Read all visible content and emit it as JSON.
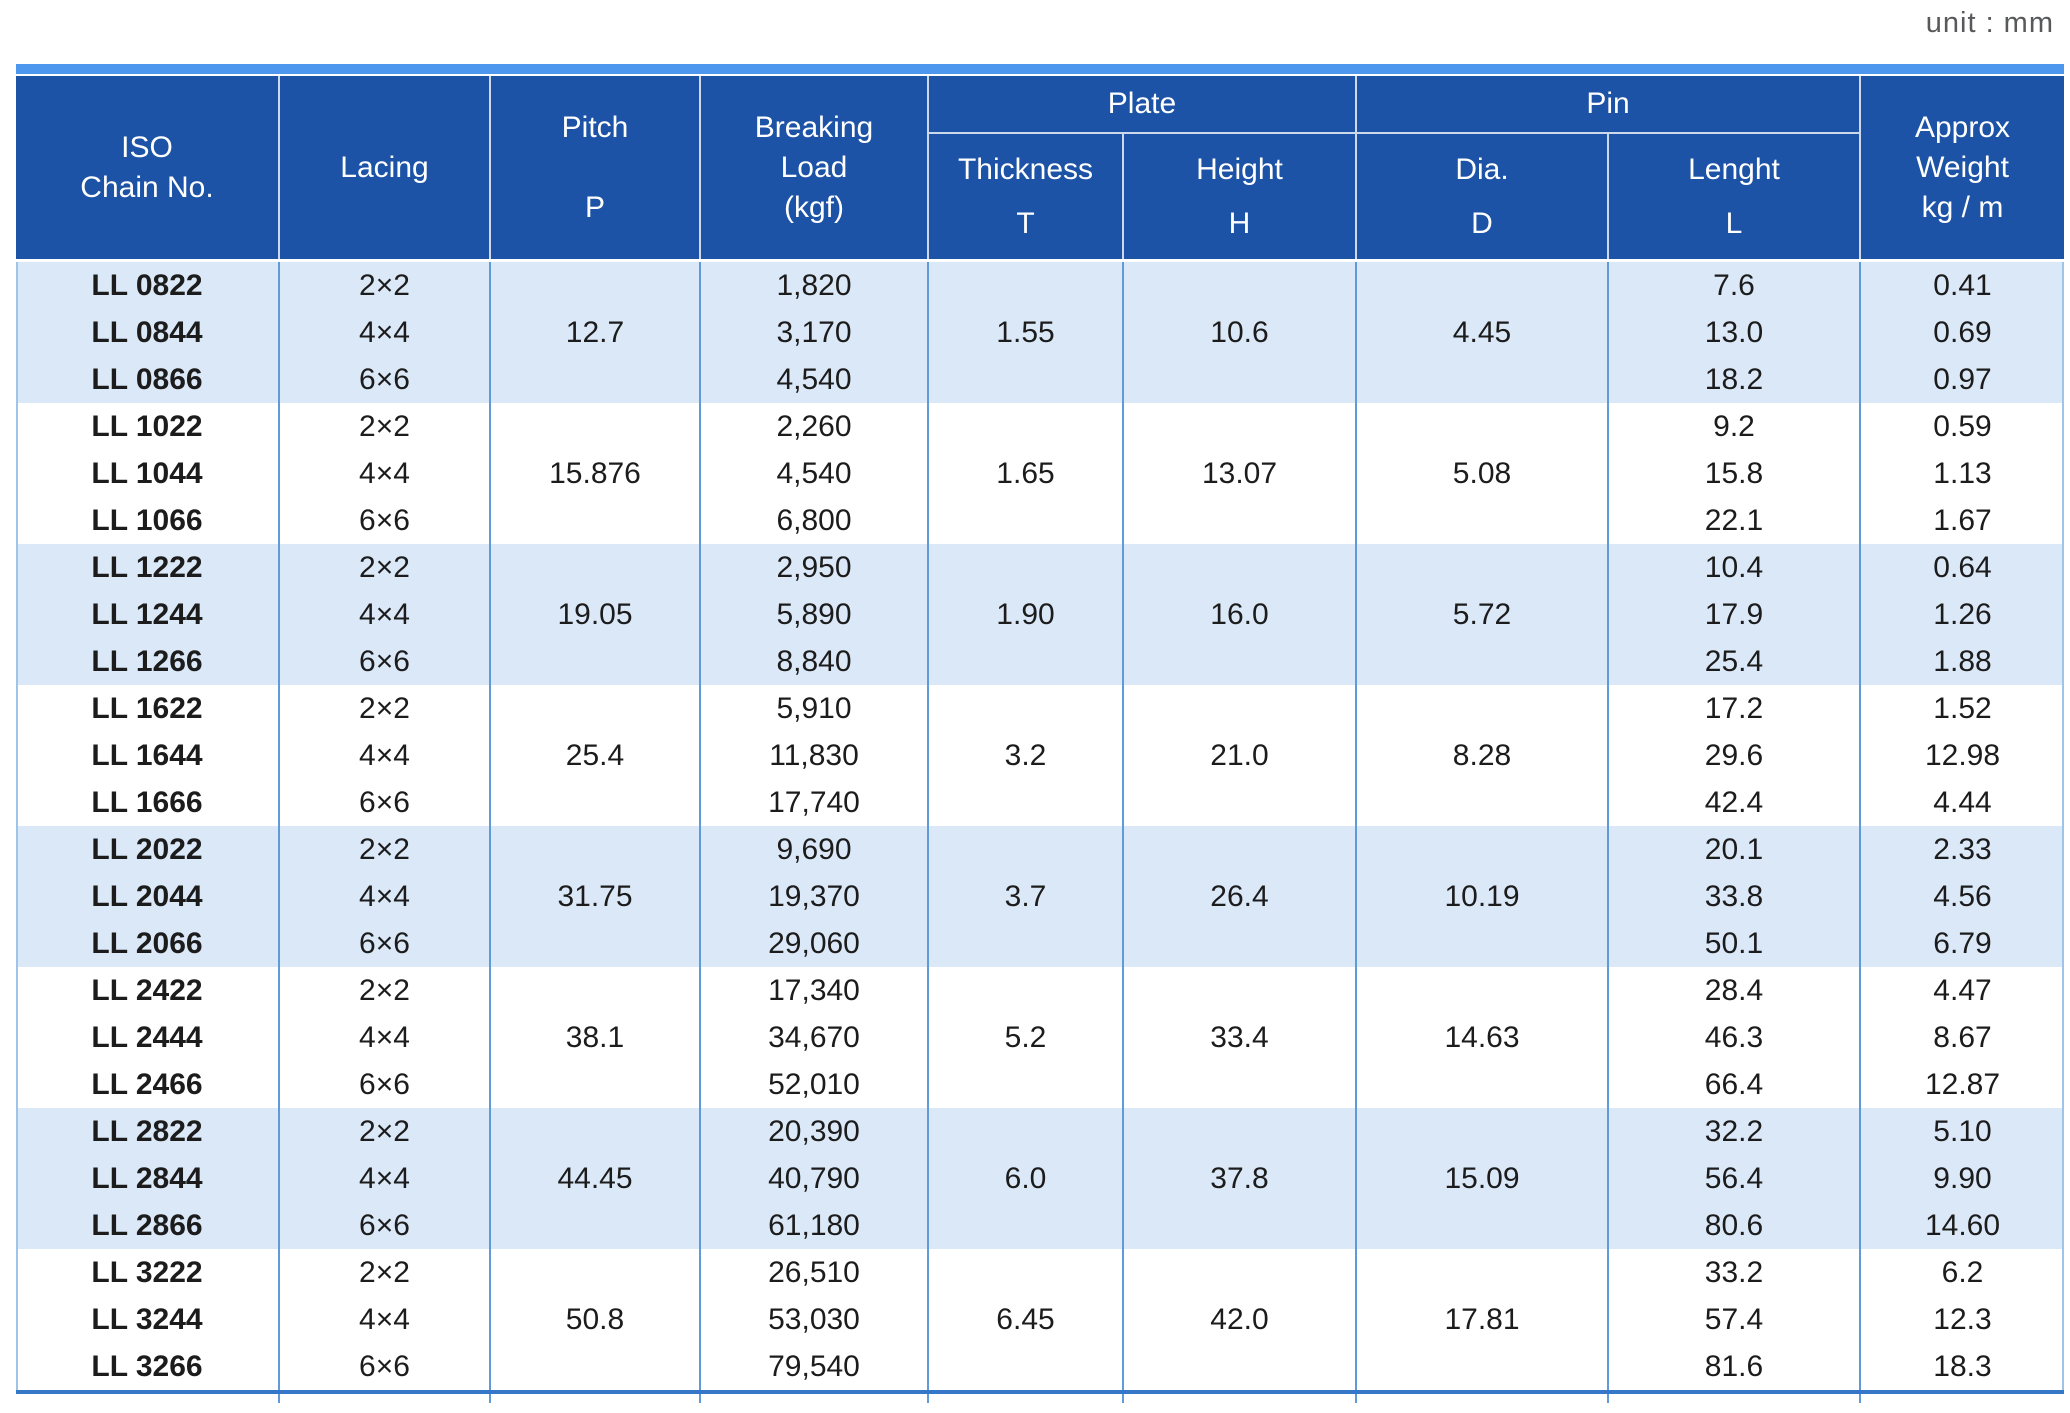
{
  "unit_label": "unit : mm",
  "header": {
    "iso_lines": [
      "ISO",
      "Chain No."
    ],
    "lacing": "Lacing",
    "pitch_lines": [
      "Pitch",
      "P"
    ],
    "load_lines": [
      "Breaking",
      "Load",
      "(kgf)"
    ],
    "plate": "Plate",
    "thickness_lines": [
      "Thickness",
      "T"
    ],
    "height_lines": [
      "Height",
      "H"
    ],
    "pin": "Pin",
    "dia_lines": [
      "Dia.",
      "D"
    ],
    "length_lines": [
      "Lenght",
      "L"
    ],
    "weight_lines": [
      "Approx",
      "Weight",
      "kg / m"
    ]
  },
  "groups": [
    {
      "shade": "light",
      "pitch": "12.7",
      "thickness": "1.55",
      "height": "10.6",
      "dia": "4.45",
      "rows": [
        {
          "chain_no": "LL 0822",
          "lacing": "2×2",
          "breaking_load": "1,820",
          "length": "7.6",
          "weight": "0.41"
        },
        {
          "chain_no": "LL 0844",
          "lacing": "4×4",
          "breaking_load": "3,170",
          "length": "13.0",
          "weight": "0.69"
        },
        {
          "chain_no": "LL 0866",
          "lacing": "6×6",
          "breaking_load": "4,540",
          "length": "18.2",
          "weight": "0.97"
        }
      ]
    },
    {
      "shade": "white",
      "pitch": "15.876",
      "thickness": "1.65",
      "height": "13.07",
      "dia": "5.08",
      "rows": [
        {
          "chain_no": "LL 1022",
          "lacing": "2×2",
          "breaking_load": "2,260",
          "length": "9.2",
          "weight": "0.59"
        },
        {
          "chain_no": "LL 1044",
          "lacing": "4×4",
          "breaking_load": "4,540",
          "length": "15.8",
          "weight": "1.13"
        },
        {
          "chain_no": "LL 1066",
          "lacing": "6×6",
          "breaking_load": "6,800",
          "length": "22.1",
          "weight": "1.67"
        }
      ]
    },
    {
      "shade": "light",
      "pitch": "19.05",
      "thickness": "1.90",
      "height": "16.0",
      "dia": "5.72",
      "rows": [
        {
          "chain_no": "LL 1222",
          "lacing": "2×2",
          "breaking_load": "2,950",
          "length": "10.4",
          "weight": "0.64"
        },
        {
          "chain_no": "LL 1244",
          "lacing": "4×4",
          "breaking_load": "5,890",
          "length": "17.9",
          "weight": "1.26"
        },
        {
          "chain_no": "LL 1266",
          "lacing": "6×6",
          "breaking_load": "8,840",
          "length": "25.4",
          "weight": "1.88"
        }
      ]
    },
    {
      "shade": "white",
      "pitch": "25.4",
      "thickness": "3.2",
      "height": "21.0",
      "dia": "8.28",
      "rows": [
        {
          "chain_no": "LL 1622",
          "lacing": "2×2",
          "breaking_load": "5,910",
          "length": "17.2",
          "weight": "1.52"
        },
        {
          "chain_no": "LL 1644",
          "lacing": "4×4",
          "breaking_load": "11,830",
          "length": "29.6",
          "weight": "12.98"
        },
        {
          "chain_no": "LL 1666",
          "lacing": "6×6",
          "breaking_load": "17,740",
          "length": "42.4",
          "weight": "4.44"
        }
      ]
    },
    {
      "shade": "light",
      "pitch": "31.75",
      "thickness": "3.7",
      "height": "26.4",
      "dia": "10.19",
      "rows": [
        {
          "chain_no": "LL 2022",
          "lacing": "2×2",
          "breaking_load": "9,690",
          "length": "20.1",
          "weight": "2.33"
        },
        {
          "chain_no": "LL 2044",
          "lacing": "4×4",
          "breaking_load": "19,370",
          "length": "33.8",
          "weight": "4.56"
        },
        {
          "chain_no": "LL 2066",
          "lacing": "6×6",
          "breaking_load": "29,060",
          "length": "50.1",
          "weight": "6.79"
        }
      ]
    },
    {
      "shade": "white",
      "pitch": "38.1",
      "thickness": "5.2",
      "height": "33.4",
      "dia": "14.63",
      "rows": [
        {
          "chain_no": "LL 2422",
          "lacing": "2×2",
          "breaking_load": "17,340",
          "length": "28.4",
          "weight": "4.47"
        },
        {
          "chain_no": "LL 2444",
          "lacing": "4×4",
          "breaking_load": "34,670",
          "length": "46.3",
          "weight": "8.67"
        },
        {
          "chain_no": "LL 2466",
          "lacing": "6×6",
          "breaking_load": "52,010",
          "length": "66.4",
          "weight": "12.87"
        }
      ]
    },
    {
      "shade": "light",
      "pitch": "44.45",
      "thickness": "6.0",
      "height": "37.8",
      "dia": "15.09",
      "rows": [
        {
          "chain_no": "LL 2822",
          "lacing": "2×2",
          "breaking_load": "20,390",
          "length": "32.2",
          "weight": "5.10"
        },
        {
          "chain_no": "LL 2844",
          "lacing": "4×4",
          "breaking_load": "40,790",
          "length": "56.4",
          "weight": "9.90"
        },
        {
          "chain_no": "LL 2866",
          "lacing": "6×6",
          "breaking_load": "61,180",
          "length": "80.6",
          "weight": "14.60"
        }
      ]
    },
    {
      "shade": "white",
      "pitch": "50.8",
      "thickness": "6.45",
      "height": "42.0",
      "dia": "17.81",
      "rows": [
        {
          "chain_no": "LL 3222",
          "lacing": "2×2",
          "breaking_load": "26,510",
          "length": "33.2",
          "weight": "6.2"
        },
        {
          "chain_no": "LL 3244",
          "lacing": "4×4",
          "breaking_load": "53,030",
          "length": "57.4",
          "weight": "12.3"
        },
        {
          "chain_no": "LL 3266",
          "lacing": "6×6",
          "breaking_load": "79,540",
          "length": "81.6",
          "weight": "18.3"
        }
      ]
    }
  ],
  "colors": {
    "header_bg": "#1c53a6",
    "header_text": "#ffffff",
    "stripe": "#4e97ef",
    "row_light": "#dbe8f8",
    "row_white": "#ffffff",
    "grid_line": "#5f9bd9",
    "bottom_line": "#3578c8",
    "unit_text": "#58595b",
    "data_text": "#1c1c1c"
  }
}
